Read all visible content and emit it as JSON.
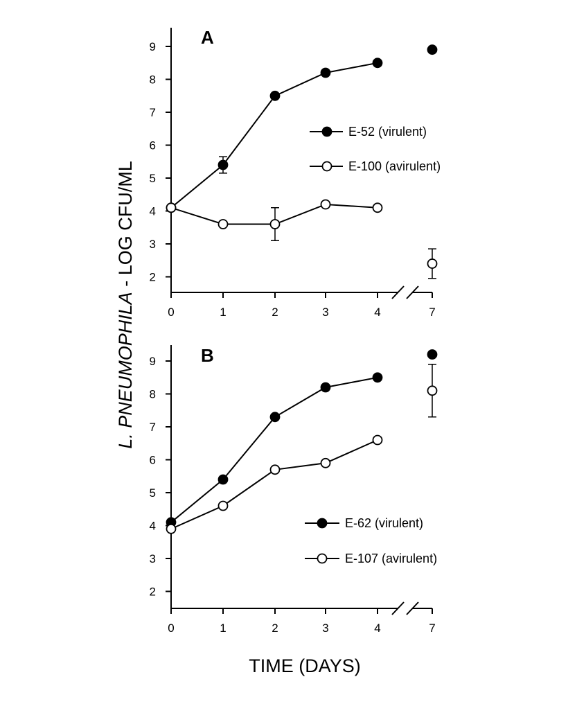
{
  "ylabel": "L. PNEUMOPHILA - LOG CFU/ML",
  "xlabel": "TIME (DAYS)",
  "chart_data": [
    {
      "type": "line",
      "panel": "A",
      "x_ticks": [
        "0",
        "1",
        "2",
        "3",
        "4",
        "7"
      ],
      "y_ticks": [
        "2",
        "3",
        "4",
        "5",
        "6",
        "7",
        "8",
        "9"
      ],
      "ylim": [
        1.5,
        9.5
      ],
      "axis_break": "between 4 and 7",
      "legend_position": "right",
      "series": [
        {
          "name": "E-52 (virulent)",
          "marker": "filled",
          "x": [
            0,
            1,
            2,
            3,
            4,
            7
          ],
          "y": [
            4.1,
            5.4,
            7.5,
            8.2,
            8.5,
            8.9
          ],
          "error": [
            0,
            0.25,
            0,
            0,
            0,
            0
          ]
        },
        {
          "name": "E-100 (avirulent)",
          "marker": "open",
          "x": [
            0,
            1,
            2,
            3,
            4,
            7
          ],
          "y": [
            4.1,
            3.6,
            3.6,
            4.2,
            4.1,
            2.4
          ],
          "error": [
            0,
            0,
            0.5,
            0,
            0,
            0.45
          ]
        }
      ]
    },
    {
      "type": "line",
      "panel": "B",
      "x_ticks": [
        "0",
        "1",
        "2",
        "3",
        "4",
        "7"
      ],
      "y_ticks": [
        "2",
        "3",
        "4",
        "5",
        "6",
        "7",
        "8",
        "9"
      ],
      "ylim": [
        1.5,
        9.5
      ],
      "axis_break": "between 4 and 7",
      "legend_position": "bottom-right",
      "series": [
        {
          "name": "E-62 (virulent)",
          "marker": "filled",
          "x": [
            0,
            1,
            2,
            3,
            4,
            7
          ],
          "y": [
            4.1,
            5.4,
            7.3,
            8.2,
            8.5,
            9.2
          ],
          "error": [
            0,
            0,
            0,
            0,
            0,
            0
          ]
        },
        {
          "name": "E-107 (avirulent)",
          "marker": "open",
          "x": [
            0,
            1,
            2,
            3,
            4,
            7
          ],
          "y": [
            3.9,
            4.6,
            5.7,
            5.9,
            6.6,
            8.1
          ],
          "error": [
            0,
            0,
            0,
            0,
            0,
            0.8
          ]
        }
      ]
    }
  ]
}
